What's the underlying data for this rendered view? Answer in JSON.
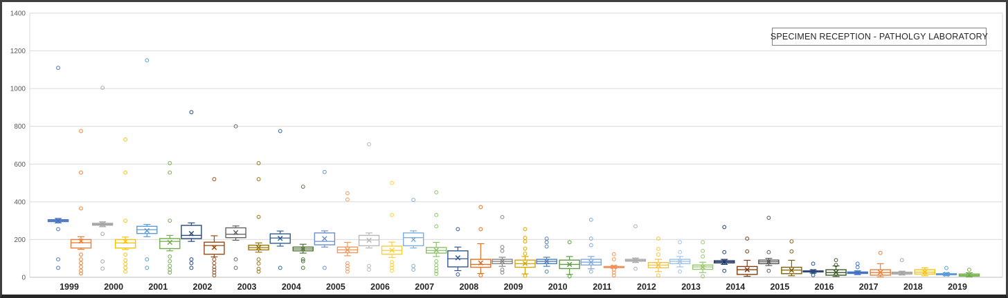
{
  "chart_data": {
    "type": "boxplot",
    "title": "SPECIMEN RECEPTION - PATHOLGY LABORATORY",
    "xlabel": "",
    "ylabel": "",
    "ylim": [
      0,
      1400
    ],
    "ytick_labels": [
      "0",
      "200",
      "400",
      "600",
      "800",
      "1000",
      "1200",
      "1400"
    ],
    "grid": true,
    "legend_position": "none",
    "categories": [
      "1999",
      "2000",
      "2001",
      "2002",
      "2003",
      "2004",
      "2005",
      "2006",
      "2007",
      "2008",
      "2009",
      "2010",
      "2011",
      "2012",
      "2013",
      "2014",
      "2015",
      "2016",
      "2017",
      "2018",
      "2019"
    ],
    "series_per_category": 2,
    "boxes": [
      {
        "year": "1999",
        "side": "left",
        "color": "#4472C4",
        "low": 288,
        "q1": 295,
        "median": 300,
        "q3": 305,
        "high": 312,
        "mean": 300,
        "outliers": [
          1110,
          255,
          95,
          50
        ]
      },
      {
        "year": "1999",
        "side": "right",
        "color": "#ED7D31",
        "low": 148,
        "q1": 155,
        "median": 183,
        "q3": 200,
        "high": 215,
        "mean": 192,
        "outliers": [
          775,
          555,
          365,
          120,
          95,
          75,
          55,
          35,
          20
        ]
      },
      {
        "year": "2000",
        "side": "left",
        "color": "#A5A5A5",
        "low": 268,
        "q1": 276,
        "median": 281,
        "q3": 286,
        "high": 294,
        "mean": 281,
        "outliers": [
          1005,
          230,
          84,
          46
        ]
      },
      {
        "year": "2000",
        "side": "right",
        "color": "#FFC000",
        "low": 147,
        "q1": 155,
        "median": 182,
        "q3": 200,
        "high": 213,
        "mean": 190,
        "outliers": [
          730,
          555,
          300,
          120,
          90,
          70,
          50,
          30
        ]
      },
      {
        "year": "2001",
        "side": "left",
        "color": "#5B9BD5",
        "low": 215,
        "q1": 232,
        "median": 252,
        "q3": 270,
        "high": 280,
        "mean": 247,
        "outliers": [
          1150,
          95,
          50
        ]
      },
      {
        "year": "2001",
        "side": "right",
        "color": "#70AD47",
        "low": 140,
        "q1": 152,
        "median": 190,
        "q3": 205,
        "high": 222,
        "mean": 185,
        "outliers": [
          605,
          555,
          300,
          110,
          85,
          60,
          40,
          25
        ]
      },
      {
        "year": "2002",
        "side": "left",
        "color": "#264478",
        "low": 190,
        "q1": 205,
        "median": 222,
        "q3": 275,
        "high": 288,
        "mean": 232,
        "outliers": [
          875,
          95,
          75,
          50
        ]
      },
      {
        "year": "2002",
        "side": "right",
        "color": "#9E480E",
        "low": 108,
        "q1": 122,
        "median": 168,
        "q3": 186,
        "high": 220,
        "mean": 158,
        "outliers": [
          520,
          95,
          75,
          55,
          40,
          25,
          10
        ]
      },
      {
        "year": "2003",
        "side": "left",
        "color": "#636363",
        "low": 196,
        "q1": 210,
        "median": 228,
        "q3": 262,
        "high": 272,
        "mean": 237,
        "outliers": [
          800,
          95,
          50
        ]
      },
      {
        "year": "2003",
        "side": "right",
        "color": "#997300",
        "low": 133,
        "q1": 145,
        "median": 157,
        "q3": 170,
        "high": 182,
        "mean": 157,
        "outliers": [
          605,
          520,
          320,
          95,
          73,
          45,
          30
        ]
      },
      {
        "year": "2004",
        "side": "left",
        "color": "#2E5E94",
        "low": 165,
        "q1": 180,
        "median": 208,
        "q3": 230,
        "high": 245,
        "mean": 206,
        "outliers": [
          775,
          50
        ]
      },
      {
        "year": "2004",
        "side": "right",
        "color": "#4A6F2F",
        "low": 128,
        "q1": 140,
        "median": 150,
        "q3": 160,
        "high": 175,
        "mean": 150,
        "outliers": [
          480,
          95,
          85,
          50
        ]
      },
      {
        "year": "2005",
        "side": "left",
        "color": "#698ED0",
        "low": 160,
        "q1": 172,
        "median": 190,
        "q3": 235,
        "high": 246,
        "mean": 205,
        "outliers": [
          558,
          50
        ]
      },
      {
        "year": "2005",
        "side": "right",
        "color": "#F1975A",
        "low": 114,
        "q1": 130,
        "median": 145,
        "q3": 160,
        "high": 185,
        "mean": 145,
        "outliers": [
          445,
          412,
          75,
          60,
          45,
          30
        ]
      },
      {
        "year": "2006",
        "side": "left",
        "color": "#B7B7B7",
        "low": 155,
        "q1": 167,
        "median": 198,
        "q3": 222,
        "high": 235,
        "mean": 196,
        "outliers": [
          705,
          60,
          40
        ]
      },
      {
        "year": "2006",
        "side": "right",
        "color": "#FFCD33",
        "low": 105,
        "q1": 122,
        "median": 142,
        "q3": 165,
        "high": 186,
        "mean": 143,
        "outliers": [
          500,
          330,
          80,
          65,
          50,
          35
        ]
      },
      {
        "year": "2007",
        "side": "left",
        "color": "#7CAFDD",
        "low": 155,
        "q1": 167,
        "median": 210,
        "q3": 235,
        "high": 246,
        "mean": 200,
        "outliers": [
          410,
          60,
          40
        ]
      },
      {
        "year": "2007",
        "side": "right",
        "color": "#8CC168",
        "low": 110,
        "q1": 128,
        "median": 142,
        "q3": 158,
        "high": 185,
        "mean": 143,
        "outliers": [
          450,
          330,
          270,
          85,
          65,
          48,
          32,
          18
        ]
      },
      {
        "year": "2008",
        "side": "left",
        "color": "#2F5597",
        "low": 35,
        "q1": 55,
        "median": 98,
        "q3": 140,
        "high": 160,
        "mean": 103,
        "outliers": [
          255,
          15
        ]
      },
      {
        "year": "2008",
        "side": "right",
        "color": "#E06F1F",
        "low": 20,
        "q1": 53,
        "median": 68,
        "q3": 95,
        "high": 178,
        "mean": 76,
        "outliers": [
          372,
          255,
          10
        ]
      },
      {
        "year": "2009",
        "side": "left",
        "color": "#848484",
        "low": 58,
        "q1": 72,
        "median": 84,
        "q3": 95,
        "high": 106,
        "mean": 84,
        "outliers": [
          319,
          160,
          140,
          40,
          25
        ]
      },
      {
        "year": "2009",
        "side": "right",
        "color": "#D6A200",
        "low": 18,
        "q1": 53,
        "median": 72,
        "q3": 91,
        "high": 110,
        "mean": 73,
        "outliers": [
          255,
          209,
          190,
          152,
          125,
          8
        ]
      },
      {
        "year": "2010",
        "side": "left",
        "color": "#4A7EBB",
        "low": 58,
        "q1": 72,
        "median": 84,
        "q3": 95,
        "high": 106,
        "mean": 84,
        "outliers": [
          205,
          186,
          163,
          30
        ]
      },
      {
        "year": "2010",
        "side": "right",
        "color": "#5E9C41",
        "low": 15,
        "q1": 46,
        "median": 68,
        "q3": 91,
        "high": 110,
        "mean": 68,
        "outliers": [
          186,
          5
        ]
      },
      {
        "year": "2011",
        "side": "left",
        "color": "#7FA8D9",
        "low": 45,
        "q1": 65,
        "median": 80,
        "q3": 95,
        "high": 110,
        "mean": 80,
        "outliers": [
          305,
          205,
          170,
          30
        ]
      },
      {
        "year": "2011",
        "side": "right",
        "color": "#F19158",
        "low": 48,
        "q1": 53,
        "median": 55,
        "q3": 57,
        "high": 62,
        "mean": 55,
        "outliers": [
          122,
          95,
          40,
          25,
          10
        ]
      },
      {
        "year": "2012",
        "side": "left",
        "color": "#ADADAD",
        "low": 78,
        "q1": 85,
        "median": 90,
        "q3": 95,
        "high": 102,
        "mean": 90,
        "outliers": [
          270,
          45
        ]
      },
      {
        "year": "2012",
        "side": "right",
        "color": "#F5C242",
        "low": 30,
        "q1": 50,
        "median": 64,
        "q3": 78,
        "high": 95,
        "mean": 64,
        "outliers": [
          205,
          150,
          120,
          10
        ]
      },
      {
        "year": "2013",
        "side": "left",
        "color": "#9DC3E6",
        "low": 55,
        "q1": 72,
        "median": 84,
        "q3": 95,
        "high": 110,
        "mean": 84,
        "outliers": [
          186,
          133,
          30
        ]
      },
      {
        "year": "2013",
        "side": "right",
        "color": "#97C66F",
        "low": 25,
        "q1": 42,
        "median": 55,
        "q3": 65,
        "high": 80,
        "mean": 54,
        "outliers": [
          186,
          140,
          110,
          5
        ]
      },
      {
        "year": "2014",
        "side": "left",
        "color": "#203864",
        "low": 68,
        "q1": 76,
        "median": 82,
        "q3": 88,
        "high": 95,
        "mean": 82,
        "outliers": [
          266,
          133,
          34
        ]
      },
      {
        "year": "2014",
        "side": "right",
        "color": "#843C0C",
        "low": 5,
        "q1": 15,
        "median": 40,
        "q3": 57,
        "high": 90,
        "mean": 40,
        "outliers": [
          205,
          137
        ]
      },
      {
        "year": "2015",
        "side": "left",
        "color": "#525252",
        "low": 62,
        "q1": 72,
        "median": 82,
        "q3": 91,
        "high": 100,
        "mean": 82,
        "outliers": [
          315,
          133,
          34
        ]
      },
      {
        "year": "2015",
        "side": "right",
        "color": "#7F6000",
        "low": 8,
        "q1": 19,
        "median": 38,
        "q3": 53,
        "high": 90,
        "mean": 37,
        "outliers": [
          190,
          137
        ]
      },
      {
        "year": "2016",
        "side": "left",
        "color": "#2E4A7D",
        "low": 22,
        "q1": 28,
        "median": 31,
        "q3": 34,
        "high": 40,
        "mean": 31,
        "outliers": [
          72,
          11
        ]
      },
      {
        "year": "2016",
        "side": "right",
        "color": "#375623",
        "low": 4,
        "q1": 11,
        "median": 25,
        "q3": 40,
        "high": 60,
        "mean": 26,
        "outliers": [
          91,
          65
        ]
      },
      {
        "year": "2017",
        "side": "left",
        "color": "#4472C4",
        "low": 14,
        "q1": 20,
        "median": 24,
        "q3": 28,
        "high": 34,
        "mean": 24,
        "outliers": [
          72,
          53
        ]
      },
      {
        "year": "2017",
        "side": "right",
        "color": "#ED7D31",
        "low": 2,
        "q1": 11,
        "median": 25,
        "q3": 40,
        "high": 72,
        "mean": 26,
        "outliers": [
          129
        ]
      },
      {
        "year": "2018",
        "side": "left",
        "color": "#A5A5A5",
        "low": 12,
        "q1": 17,
        "median": 22,
        "q3": 27,
        "high": 32,
        "mean": 22,
        "outliers": [
          91
        ]
      },
      {
        "year": "2018",
        "side": "right",
        "color": "#FFC000",
        "low": 8,
        "q1": 17,
        "median": 27,
        "q3": 40,
        "high": 50,
        "mean": 28,
        "outliers": []
      },
      {
        "year": "2019",
        "side": "left",
        "color": "#5B9BD5",
        "low": 8,
        "q1": 13,
        "median": 16,
        "q3": 19,
        "high": 24,
        "mean": 16,
        "outliers": [
          49
        ]
      },
      {
        "year": "2019",
        "side": "right",
        "color": "#70AD47",
        "low": 3,
        "q1": 6,
        "median": 11,
        "q3": 17,
        "high": 24,
        "mean": 12,
        "outliers": [
          40
        ]
      }
    ]
  }
}
